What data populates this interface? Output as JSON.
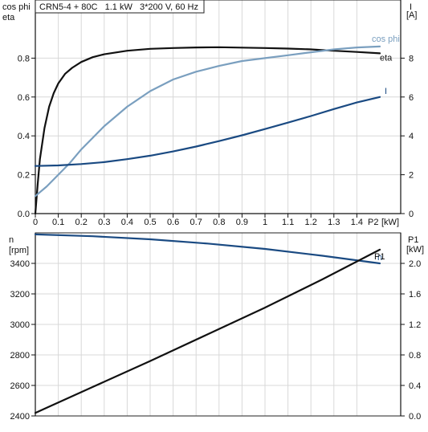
{
  "chart_data": [
    {
      "type": "line",
      "title": "CRN5-4 + 80C   1.1 kW   3*200 V, 60 Hz",
      "xlabel": "P2 [kW]",
      "xlabel_name": "P2",
      "xlabel_unit": "[kW]",
      "ylabel_left": [
        "cos phi",
        "eta"
      ],
      "ylabel_right": [
        "I",
        "[A]"
      ],
      "x_ticks": [
        "0",
        "0.1",
        "0.2",
        "0.3",
        "0.4",
        "0.5",
        "0.6",
        "0.7",
        "0.8",
        "0.9",
        "1",
        "1.1",
        "1.2",
        "1.3",
        "1.4"
      ],
      "xlim": [
        0,
        1.5
      ],
      "ylim_left": [
        0,
        1.0
      ],
      "ylim_right": [
        0,
        10
      ],
      "y_left_ticks": [
        "0.0",
        "0.2",
        "0.4",
        "0.6",
        "0.8"
      ],
      "y_right_ticks": [
        "0",
        "2",
        "4",
        "6",
        "8"
      ],
      "grid": true,
      "series": [
        {
          "name": "eta",
          "axis": "left",
          "color": "#111111",
          "points": [
            [
              0,
              0.0
            ],
            [
              0.01,
              0.15
            ],
            [
              0.02,
              0.28
            ],
            [
              0.04,
              0.44
            ],
            [
              0.06,
              0.55
            ],
            [
              0.08,
              0.62
            ],
            [
              0.1,
              0.67
            ],
            [
              0.13,
              0.72
            ],
            [
              0.16,
              0.75
            ],
            [
              0.2,
              0.78
            ],
            [
              0.25,
              0.805
            ],
            [
              0.3,
              0.82
            ],
            [
              0.4,
              0.838
            ],
            [
              0.5,
              0.848
            ],
            [
              0.6,
              0.852
            ],
            [
              0.7,
              0.855
            ],
            [
              0.8,
              0.856
            ],
            [
              0.9,
              0.854
            ],
            [
              1.0,
              0.852
            ],
            [
              1.1,
              0.849
            ],
            [
              1.2,
              0.845
            ],
            [
              1.3,
              0.838
            ],
            [
              1.4,
              0.832
            ],
            [
              1.5,
              0.825
            ]
          ]
        },
        {
          "name": "cos phi",
          "axis": "left",
          "color": "#7a9fbf",
          "points": [
            [
              0,
              0.09
            ],
            [
              0.05,
              0.14
            ],
            [
              0.1,
              0.2
            ],
            [
              0.15,
              0.26
            ],
            [
              0.2,
              0.33
            ],
            [
              0.3,
              0.45
            ],
            [
              0.4,
              0.55
            ],
            [
              0.5,
              0.63
            ],
            [
              0.6,
              0.69
            ],
            [
              0.7,
              0.73
            ],
            [
              0.8,
              0.76
            ],
            [
              0.9,
              0.785
            ],
            [
              1.0,
              0.8
            ],
            [
              1.1,
              0.815
            ],
            [
              1.2,
              0.83
            ],
            [
              1.3,
              0.845
            ],
            [
              1.4,
              0.855
            ],
            [
              1.5,
              0.86
            ]
          ]
        },
        {
          "name": "I",
          "axis": "right",
          "color": "#1a4a82",
          "points": [
            [
              0,
              2.45
            ],
            [
              0.1,
              2.48
            ],
            [
              0.2,
              2.55
            ],
            [
              0.3,
              2.65
            ],
            [
              0.4,
              2.8
            ],
            [
              0.5,
              2.98
            ],
            [
              0.6,
              3.2
            ],
            [
              0.7,
              3.45
            ],
            [
              0.8,
              3.73
            ],
            [
              0.9,
              4.03
            ],
            [
              1.0,
              4.35
            ],
            [
              1.1,
              4.68
            ],
            [
              1.2,
              5.02
            ],
            [
              1.3,
              5.38
            ],
            [
              1.4,
              5.72
            ],
            [
              1.5,
              6.0
            ]
          ]
        }
      ]
    },
    {
      "type": "line",
      "xlim": [
        0,
        1.5
      ],
      "ylabel_left": [
        "n",
        "[rpm]"
      ],
      "ylabel_right": [
        "P1",
        "[kW]"
      ],
      "ylim_left": [
        2400,
        3600
      ],
      "ylim_right": [
        0,
        2.4
      ],
      "y_left_ticks": [
        "2400",
        "2600",
        "2800",
        "3000",
        "3200",
        "3400"
      ],
      "y_right_ticks": [
        "0.0",
        "0.4",
        "0.8",
        "1.2",
        "1.6",
        "2.0"
      ],
      "grid": true,
      "series": [
        {
          "name": "n",
          "axis": "left",
          "color": "#1a4a82",
          "points": [
            [
              0,
              3590
            ],
            [
              0.25,
              3578
            ],
            [
              0.5,
              3558
            ],
            [
              0.75,
              3530
            ],
            [
              1.0,
              3495
            ],
            [
              1.25,
              3450
            ],
            [
              1.5,
              3400
            ]
          ]
        },
        {
          "name": "P1",
          "axis": "right",
          "color": "#111111",
          "points": [
            [
              0,
              0.04
            ],
            [
              0.25,
              0.38
            ],
            [
              0.5,
              0.72
            ],
            [
              0.75,
              1.07
            ],
            [
              1.0,
              1.42
            ],
            [
              1.25,
              1.79
            ],
            [
              1.5,
              2.18
            ]
          ]
        }
      ]
    }
  ]
}
